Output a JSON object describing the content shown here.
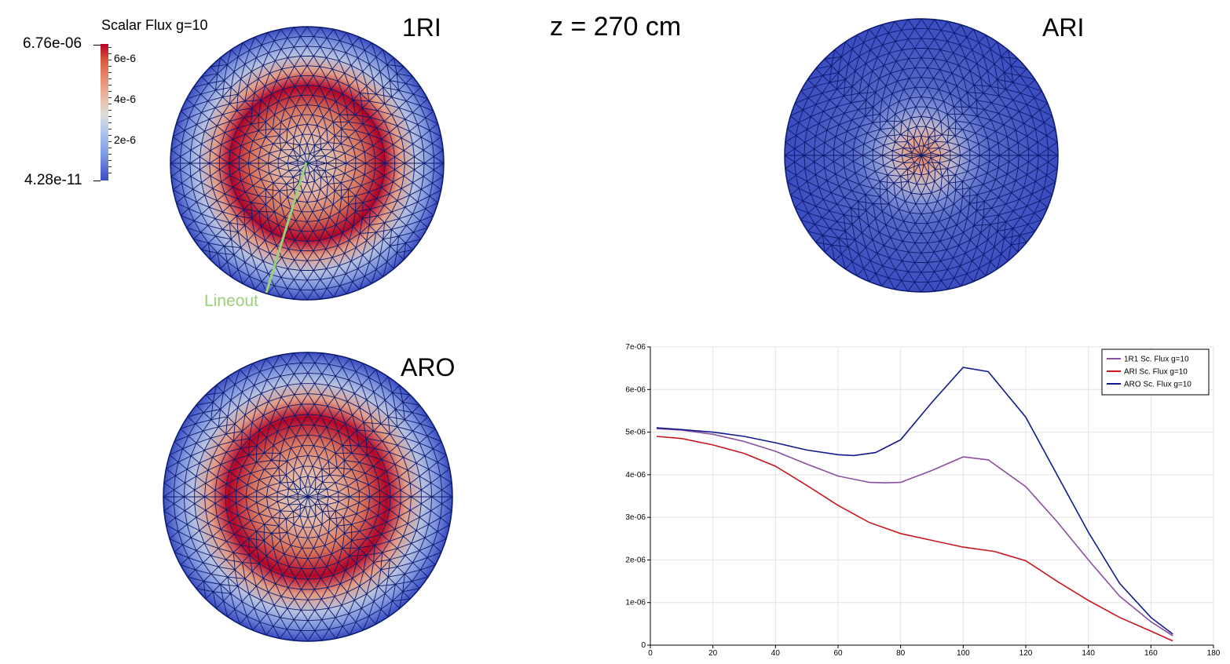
{
  "header": {
    "title": "z = 270 cm"
  },
  "panels": [
    {
      "label": "1RI"
    },
    {
      "label": "ARI"
    },
    {
      "label": "ARO"
    }
  ],
  "colorbar": {
    "title": "Scalar Flux g=10",
    "max": "6.76e-06",
    "min": "4.28e-11",
    "ticks": [
      "6e-6",
      "4e-6",
      "2e-6"
    ]
  },
  "lineout": {
    "label": "Lineout",
    "color": "#9ccf7a"
  },
  "colors": {
    "mesh_edge": "#0b1a6e",
    "low": "#3b4cc0",
    "mid": "#dddddd",
    "high": "#b40426"
  },
  "chart_data": {
    "type": "line",
    "title": "",
    "xlabel": "",
    "ylabel": "",
    "xlim": [
      0,
      180
    ],
    "ylim": [
      0,
      7e-06
    ],
    "xticks": [
      "0",
      "20",
      "40",
      "60",
      "80",
      "100",
      "120",
      "140",
      "160",
      "180"
    ],
    "yticks": [
      "0",
      "1e-06",
      "2e-06",
      "3e-06",
      "4e-06",
      "5e-06",
      "6e-06",
      "7e-06"
    ],
    "grid": true,
    "legend_position": "top-right",
    "series": [
      {
        "name": "1R1 Sc. Flux g=10",
        "color": "#8a4f9e",
        "x": [
          2,
          10,
          20,
          30,
          40,
          50,
          60,
          70,
          75,
          80,
          90,
          100,
          108,
          120,
          130,
          140,
          150,
          160,
          167
        ],
        "y": [
          5.08e-06,
          5.05e-06,
          4.95e-06,
          4.78e-06,
          4.55e-06,
          4.25e-06,
          3.97e-06,
          3.82e-06,
          3.81e-06,
          3.82e-06,
          4.1e-06,
          4.42e-06,
          4.35e-06,
          3.72e-06,
          2.9e-06,
          2e-06,
          1.15e-06,
          5.5e-07,
          2.2e-07
        ]
      },
      {
        "name": "ARI Sc. Flux g=10",
        "color": "#c8161d",
        "x": [
          2,
          10,
          20,
          30,
          40,
          50,
          60,
          70,
          80,
          90,
          100,
          110,
          120,
          130,
          140,
          150,
          160,
          167
        ],
        "y": [
          4.9e-06,
          4.85e-06,
          4.7e-06,
          4.5e-06,
          4.2e-06,
          3.75e-06,
          3.28e-06,
          2.88e-06,
          2.62e-06,
          2.46e-06,
          2.3e-06,
          2.2e-06,
          1.98e-06,
          1.5e-06,
          1.05e-06,
          6.5e-07,
          3.3e-07,
          1e-07
        ]
      },
      {
        "name": "ARO Sc. Flux g=10",
        "color": "#101a8c",
        "x": [
          2,
          10,
          20,
          30,
          40,
          50,
          60,
          65,
          72,
          80,
          90,
          100,
          108,
          120,
          130,
          140,
          150,
          160,
          167
        ],
        "y": [
          5.1e-06,
          5.06e-06,
          5e-06,
          4.9e-06,
          4.75e-06,
          4.58e-06,
          4.47e-06,
          4.45e-06,
          4.52e-06,
          4.82e-06,
          5.7e-06,
          6.52e-06,
          6.42e-06,
          5.35e-06,
          4e-06,
          2.65e-06,
          1.45e-06,
          6.5e-07,
          2.6e-07
        ]
      }
    ]
  }
}
